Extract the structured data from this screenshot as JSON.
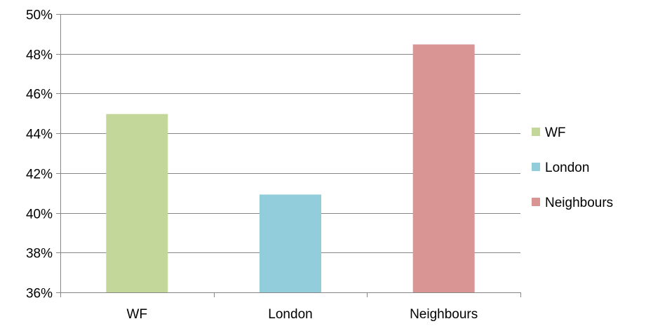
{
  "chart_data": {
    "type": "bar",
    "categories": [
      "WF",
      "London",
      "Neighbours"
    ],
    "values": [
      0.4497,
      0.4092,
      0.4847
    ],
    "colors": [
      "#c4d79b",
      "#92cddc",
      "#d99594"
    ],
    "ylim": [
      0.36,
      0.5
    ],
    "yticks": [
      0.36,
      0.38,
      0.4,
      0.42,
      0.44,
      0.46,
      0.48,
      0.5
    ],
    "ytick_labels": [
      "36%",
      "38%",
      "40%",
      "42%",
      "44%",
      "46%",
      "48%",
      "50%"
    ],
    "grid": true,
    "legend": {
      "position": "right",
      "entries": [
        "WF",
        "London",
        "Neighbours"
      ]
    }
  }
}
